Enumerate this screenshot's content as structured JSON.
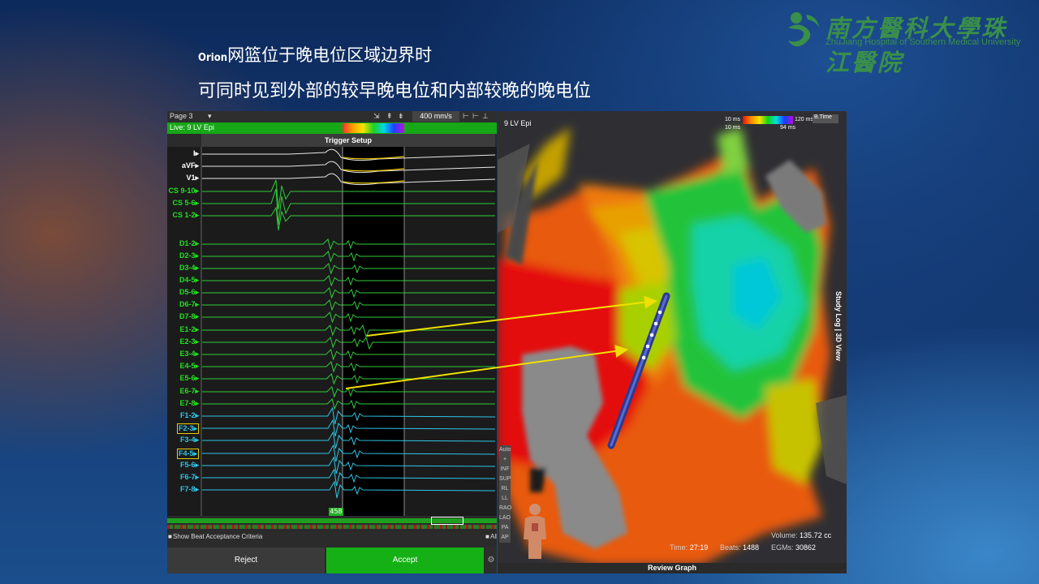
{
  "slide": {
    "heading_small": "Orion",
    "heading_line1": "网篮位于晚电位区域边界时",
    "heading_line2": "可同时见到外部的较早晚电位和内部较晚的晚电位"
  },
  "logo": {
    "name_cn": "南方醫科大學珠江醫院",
    "name_en": "ZhuJiang Hospital of Southern Medical University"
  },
  "left_panel": {
    "page": "Page 3",
    "speed": "400 mm/s",
    "live_label": "Live: 9 LV Epi",
    "trigger_title": "Trigger Setup",
    "marker": "458",
    "show_beat": "Show Beat Acceptance Criteria",
    "all_label": "All",
    "reject": "Reject",
    "accept": "Accept",
    "channels": [
      {
        "name": "I",
        "color": "#ffffff",
        "box": false
      },
      {
        "name": "aVF",
        "color": "#ffffff",
        "box": false
      },
      {
        "name": "V1",
        "color": "#ffffff",
        "box": false
      },
      {
        "name": "CS 9-10",
        "color": "#22e022",
        "box": false
      },
      {
        "name": "CS 5-6",
        "color": "#22e022",
        "box": false
      },
      {
        "name": "CS 1-2",
        "color": "#22e022",
        "box": false
      },
      {
        "name": "D1-2",
        "color": "#22e022",
        "box": false
      },
      {
        "name": "D2-3",
        "color": "#22e022",
        "box": false
      },
      {
        "name": "D3-4",
        "color": "#22e022",
        "box": false
      },
      {
        "name": "D4-5",
        "color": "#22e022",
        "box": false
      },
      {
        "name": "D5-6",
        "color": "#22e022",
        "box": false
      },
      {
        "name": "D6-7",
        "color": "#22e022",
        "box": false
      },
      {
        "name": "D7-8",
        "color": "#22e022",
        "box": false
      },
      {
        "name": "E1-2",
        "color": "#22e022",
        "box": false
      },
      {
        "name": "E2-3",
        "color": "#22e022",
        "box": false
      },
      {
        "name": "E3-4",
        "color": "#22e022",
        "box": false
      },
      {
        "name": "E4-5",
        "color": "#22e022",
        "box": false
      },
      {
        "name": "E5-6",
        "color": "#22e022",
        "box": false
      },
      {
        "name": "E6-7",
        "color": "#22e022",
        "box": false
      },
      {
        "name": "E7-8",
        "color": "#22e022",
        "box": false
      },
      {
        "name": "F1-2",
        "color": "#2ec6e6",
        "box": false
      },
      {
        "name": "F2-3",
        "color": "#2ec6e6",
        "box": true
      },
      {
        "name": "F3-4",
        "color": "#2ec6e6",
        "box": false
      },
      {
        "name": "F4-5",
        "color": "#2ec6e6",
        "box": true
      },
      {
        "name": "F5-6",
        "color": "#2ec6e6",
        "box": false
      },
      {
        "name": "F6-7",
        "color": "#2ec6e6",
        "box": false
      },
      {
        "name": "F7-8",
        "color": "#2ec6e6",
        "box": false
      }
    ]
  },
  "right_panel": {
    "view_label": "9 LV Epi",
    "legend_min": "10 ms",
    "legend_max": "120 ms",
    "legend_min2": "10 ms",
    "legend_cur": "94 ms",
    "legend_mode": "B.Time",
    "side_label": "Study Log | 3D View",
    "time_label": "Time:",
    "time_value": "27:19",
    "beats_label": "Beats:",
    "beats_value": "1488",
    "volume_label": "Volume:",
    "volume_value": "135.72 cc",
    "egms_label": "EGMs:",
    "egms_value": "30862",
    "review": "Review Graph",
    "view_buttons": [
      "Auto",
      "+",
      "INF",
      "SUP",
      "RL",
      "LL",
      "RAO",
      "LAO",
      "PA",
      "AP"
    ]
  },
  "colors": {
    "accept_green": "#15b015",
    "arrow_yellow": "#f0e000"
  }
}
